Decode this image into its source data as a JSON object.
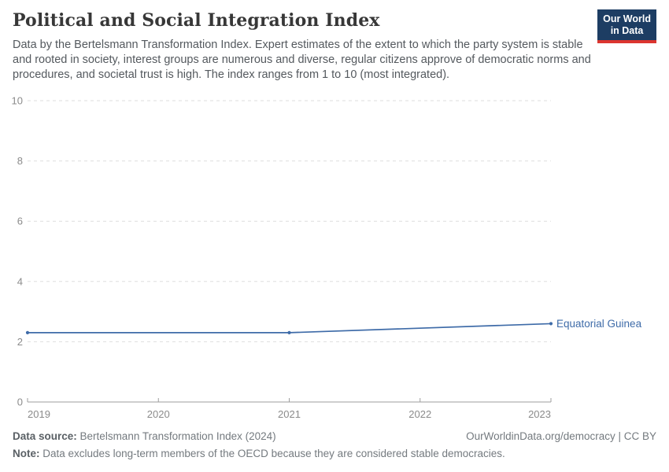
{
  "header": {
    "title": "Political and Social Integration Index",
    "subtitle": "Data by the Bertelsmann Transformation Index. Expert estimates of the extent to which the party system is stable and rooted in society, interest groups are numerous and diverse, regular citizens approve of democratic norms and procedures, and societal trust is high. The index ranges from 1 to 10 (most integrated).",
    "logo": {
      "line1": "Our World",
      "line2": "in Data",
      "bg_color": "#1d3d63",
      "accent_color": "#dc352f"
    }
  },
  "chart_data": {
    "type": "line",
    "title": "Political and Social Integration Index",
    "x": [
      2019,
      2021,
      2023
    ],
    "series": [
      {
        "name": "Equatorial Guinea",
        "values": [
          2.3,
          2.3,
          2.6
        ],
        "color": "#3e6ba8"
      }
    ],
    "xlim": [
      2019,
      2023
    ],
    "ylim": [
      0,
      10
    ],
    "x_ticks": [
      2019,
      2020,
      2021,
      2022,
      2023
    ],
    "y_ticks": [
      0,
      2,
      4,
      6,
      8,
      10
    ],
    "grid": "horizontal-dashed",
    "legend_position": "end-of-line-label",
    "xlabel": "",
    "ylabel": ""
  },
  "colors": {
    "grid_line": "#dedede",
    "axis_line": "#9e9e9e",
    "axis_text": "#8b8b8b"
  },
  "footer": {
    "data_source_label": "Data source:",
    "data_source": "Bertelsmann Transformation Index (2024)",
    "attribution": "OurWorldinData.org/democracy | CC BY",
    "note_label": "Note:",
    "note": "Data excludes long-term members of the OECD because they are considered stable democracies."
  }
}
